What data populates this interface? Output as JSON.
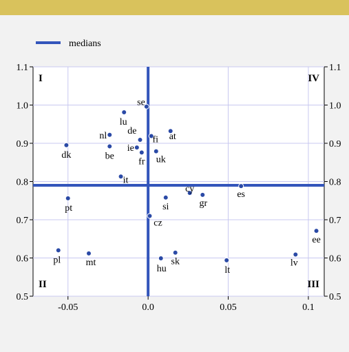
{
  "header": {
    "title": ""
  },
  "chart_data": {
    "type": "scatter",
    "title": "",
    "xlabel": "",
    "ylabel": "",
    "xlim": [
      -0.075,
      0.11
    ],
    "ylim": [
      0.5,
      1.1
    ],
    "x_ticks": [
      -0.05,
      0.0,
      0.05,
      0.1
    ],
    "x_tick_labels": [
      "-0.05",
      "0.0",
      "0.05",
      "0.1"
    ],
    "y_ticks": [
      0.5,
      0.6,
      0.7,
      0.8,
      0.9,
      1.0,
      1.1
    ],
    "y_tick_labels": [
      "0.5",
      "0.6",
      "0.7",
      "0.8",
      "0.9",
      "1.0",
      "1.1"
    ],
    "grid": true,
    "legend": {
      "position": "top-left",
      "entries": [
        "medians"
      ]
    },
    "medians": {
      "x": 0.0,
      "y": 0.79,
      "color": "#3355bb"
    },
    "quadrant_labels": [
      "I",
      "IV",
      "II",
      "III"
    ],
    "point_color": "#2b4aa6",
    "points": [
      {
        "label": "se",
        "x": -0.001,
        "y": 0.996
      },
      {
        "label": "lu",
        "x": -0.015,
        "y": 0.981
      },
      {
        "label": "nl",
        "x": -0.024,
        "y": 0.922
      },
      {
        "label": "de",
        "x": -0.005,
        "y": 0.909
      },
      {
        "label": "be",
        "x": -0.024,
        "y": 0.892
      },
      {
        "label": "dk",
        "x": -0.051,
        "y": 0.895
      },
      {
        "label": "ie",
        "x": -0.007,
        "y": 0.889
      },
      {
        "label": "fi",
        "x": 0.002,
        "y": 0.919
      },
      {
        "label": "at",
        "x": 0.014,
        "y": 0.932
      },
      {
        "label": "fr",
        "x": -0.004,
        "y": 0.876
      },
      {
        "label": "uk",
        "x": 0.005,
        "y": 0.879
      },
      {
        "label": "it",
        "x": -0.017,
        "y": 0.813
      },
      {
        "label": "es",
        "x": 0.058,
        "y": 0.788
      },
      {
        "label": "cy",
        "x": 0.026,
        "y": 0.77
      },
      {
        "label": "gr",
        "x": 0.034,
        "y": 0.765
      },
      {
        "label": "si",
        "x": 0.011,
        "y": 0.758
      },
      {
        "label": "pt",
        "x": -0.05,
        "y": 0.756
      },
      {
        "label": "cz",
        "x": 0.001,
        "y": 0.71
      },
      {
        "label": "ee",
        "x": 0.105,
        "y": 0.671
      },
      {
        "label": "pl",
        "x": -0.056,
        "y": 0.62
      },
      {
        "label": "mt",
        "x": -0.037,
        "y": 0.612
      },
      {
        "label": "sk",
        "x": 0.017,
        "y": 0.614
      },
      {
        "label": "lv",
        "x": 0.092,
        "y": 0.609
      },
      {
        "label": "hu",
        "x": 0.008,
        "y": 0.599
      },
      {
        "label": "lt",
        "x": 0.049,
        "y": 0.594
      }
    ]
  }
}
